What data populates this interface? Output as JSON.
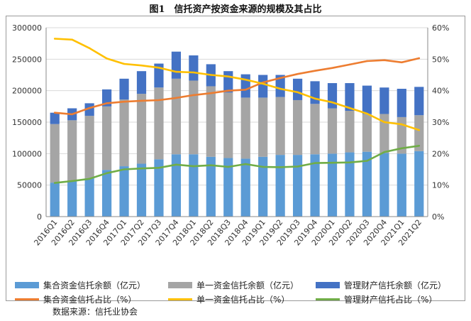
{
  "figure": {
    "title": "图1　信托资产按资金来源的规模及其占比",
    "source": "数据来源：信托业协会"
  },
  "colors": {
    "jihe_bar": "#5b9bd5",
    "danyi_bar": "#a5a5a5",
    "guanli_bar": "#4472c4",
    "jihe_line": "#ed7d31",
    "danyi_line": "#ffc000",
    "guanli_line": "#70ad47",
    "grid": "#d9d9d9",
    "axis": "#888888"
  },
  "chart_data": {
    "type": "bar+line",
    "categories": [
      "2016Q1",
      "2016Q2",
      "2016Q3",
      "2016Q4",
      "2017Q1",
      "2017Q2",
      "2017Q3",
      "2017Q4",
      "2018Q1",
      "2018Q2",
      "2018Q3",
      "2018Q4",
      "2019Q1",
      "2019Q2",
      "2019Q3",
      "2019Q4",
      "2020Q1",
      "2020Q2",
      "2020Q3",
      "2020Q4",
      "2021Q1",
      "2021Q2"
    ],
    "left_axis": {
      "ylim": [
        0,
        300000
      ],
      "ticks": [
        "0",
        "50000",
        "100000",
        "150000",
        "200000",
        "250000",
        "300000"
      ]
    },
    "right_axis": {
      "ylim": [
        0,
        60
      ],
      "ticks": [
        "0%",
        "10%",
        "20%",
        "30%",
        "40%",
        "50%",
        "60%"
      ]
    },
    "grid": true,
    "legend_position": "bottom",
    "bar_series": [
      {
        "name": "集合资金信托余额（亿元）",
        "stacked": true,
        "values": [
          54000,
          56000,
          61000,
          74000,
          80000,
          84000,
          91000,
          99000,
          99000,
          95000,
          93000,
          92000,
          95000,
          98000,
          98000,
          99000,
          100000,
          102000,
          103000,
          101000,
          100000,
          104000
        ]
      },
      {
        "name": "单一资金信托余额（亿元）",
        "stacked": true,
        "values": [
          93000,
          97000,
          99000,
          101000,
          106000,
          111000,
          114000,
          120000,
          117000,
          112000,
          104000,
          97000,
          94000,
          92000,
          87000,
          80000,
          72000,
          66000,
          60000,
          62000,
          58000,
          57000
        ]
      },
      {
        "name": "管理财产信托余额（亿元）",
        "stacked": true,
        "values": [
          18000,
          19000,
          20000,
          27000,
          33000,
          36000,
          38000,
          43000,
          40000,
          35000,
          34000,
          37000,
          36000,
          35000,
          34000,
          36000,
          40000,
          44000,
          45000,
          42000,
          45000,
          45000
        ]
      }
    ],
    "line_series": [
      {
        "name": "集合资金信托占比（%）",
        "values": [
          33,
          32.5,
          34.5,
          36,
          36.5,
          36.8,
          37,
          37.7,
          38.6,
          39.2,
          40,
          40.3,
          42.6,
          44,
          45.3,
          46.3,
          47.2,
          48.3,
          49.4,
          49.7,
          49,
          50.3
        ]
      },
      {
        "name": "单一资金信托占比（%）",
        "values": [
          56.5,
          56.2,
          53.5,
          50.2,
          48.5,
          48,
          47.3,
          46,
          45.8,
          45,
          44.5,
          43.5,
          42.2,
          40.6,
          39.5,
          37.5,
          36.3,
          34.5,
          32.7,
          30,
          29.3,
          27.5
        ]
      },
      {
        "name": "管理财产信托占比（%）",
        "values": [
          10.7,
          11.3,
          12,
          13.8,
          15,
          15.3,
          15.5,
          16.5,
          16,
          16.3,
          15.8,
          16.7,
          15.8,
          15.7,
          15.9,
          17,
          17.1,
          17.2,
          17.7,
          20.5,
          21.7,
          22.5
        ]
      }
    ]
  }
}
